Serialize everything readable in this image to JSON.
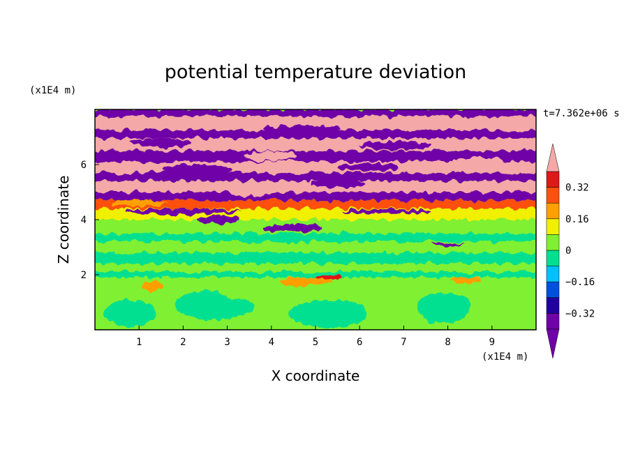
{
  "chart_data": {
    "type": "heatmap",
    "title": "potential temperature deviation",
    "xlabel": "X coordinate",
    "ylabel": "Z coordinate",
    "x_unit": "(x1E4 m)",
    "y_unit": "(x1E4 m)",
    "time_label": "t=7.362e+06 s",
    "xlim": [
      0,
      10
    ],
    "ylim": [
      0,
      8
    ],
    "x_ticks": [
      1,
      2,
      3,
      4,
      5,
      6,
      7,
      8,
      9
    ],
    "y_ticks": [
      2,
      4,
      6
    ],
    "colorbar": {
      "levels": [
        -0.4,
        -0.32,
        -0.24,
        -0.16,
        -0.08,
        0,
        0.08,
        0.16,
        0.24,
        0.32,
        0.4
      ],
      "tick_labels": [
        "0.32",
        "0.16",
        "0",
        "−0.16",
        "−0.32"
      ],
      "tick_values": [
        0.32,
        0.16,
        0,
        -0.16,
        -0.32
      ],
      "colors": [
        "#7000a8",
        "#2000a0",
        "#0050e0",
        "#00c0ff",
        "#00e090",
        "#80f030",
        "#f0f000",
        "#ffa000",
        "#ff5010",
        "#e01818",
        "#f4a8a8"
      ],
      "extend": "both"
    },
    "bands": [
      {
        "z0": 7.75,
        "z1": 8.0,
        "value": -0.45
      },
      {
        "z0": 7.25,
        "z1": 7.75,
        "value": 0.45
      },
      {
        "z0": 6.95,
        "z1": 7.25,
        "value": -0.45
      },
      {
        "z0": 6.5,
        "z1": 6.95,
        "value": 0.45
      },
      {
        "z0": 6.1,
        "z1": 6.5,
        "value": -0.45
      },
      {
        "z0": 5.7,
        "z1": 6.1,
        "value": 0.45
      },
      {
        "z0": 5.4,
        "z1": 5.7,
        "value": -0.45
      },
      {
        "z0": 5.0,
        "z1": 5.4,
        "value": 0.45
      },
      {
        "z0": 4.7,
        "z1": 5.0,
        "value": -0.45
      },
      {
        "z0": 4.4,
        "z1": 4.7,
        "value": 0.3
      },
      {
        "z0": 4.0,
        "z1": 4.4,
        "value": 0.12
      },
      {
        "z0": 3.5,
        "z1": 4.0,
        "value": 0.05
      },
      {
        "z0": 3.2,
        "z1": 3.5,
        "value": -0.04
      },
      {
        "z0": 2.8,
        "z1": 3.2,
        "value": 0.05
      },
      {
        "z0": 2.4,
        "z1": 2.8,
        "value": -0.04
      },
      {
        "z0": 2.1,
        "z1": 2.4,
        "value": 0.05
      },
      {
        "z0": 1.9,
        "z1": 2.1,
        "value": -0.04
      },
      {
        "z0": 0.0,
        "z1": 1.9,
        "value": 0.05
      }
    ],
    "patches": [
      {
        "x": 4.8,
        "z": 1.75,
        "rx": 0.6,
        "rz": 0.15,
        "value": 0.2
      },
      {
        "x": 5.3,
        "z": 1.9,
        "rx": 0.3,
        "rz": 0.08,
        "value": 0.33
      },
      {
        "x": 1.3,
        "z": 1.6,
        "rx": 0.25,
        "rz": 0.2,
        "value": 0.17
      },
      {
        "x": 8.4,
        "z": 1.8,
        "rx": 0.35,
        "rz": 0.12,
        "value": 0.18
      },
      {
        "x": 2.7,
        "z": 0.9,
        "rx": 0.9,
        "rz": 0.55,
        "value": -0.04
      },
      {
        "x": 5.3,
        "z": 0.6,
        "rx": 0.9,
        "rz": 0.5,
        "value": -0.04
      },
      {
        "x": 7.9,
        "z": 0.8,
        "rx": 0.6,
        "rz": 0.55,
        "value": -0.04
      },
      {
        "x": 0.8,
        "z": 0.6,
        "rx": 0.6,
        "rz": 0.45,
        "value": -0.04
      },
      {
        "x": 3.5,
        "z": 1.4,
        "rx": 0.7,
        "rz": 0.3,
        "value": 0.05
      },
      {
        "x": 8.0,
        "z": 3.1,
        "rx": 0.35,
        "rz": 0.06,
        "value": -0.33
      },
      {
        "x": 2.8,
        "z": 4.0,
        "rx": 0.5,
        "rz": 0.15,
        "value": -0.45
      },
      {
        "x": 4.5,
        "z": 3.7,
        "rx": 0.7,
        "rz": 0.14,
        "value": -0.45
      },
      {
        "x": 2.0,
        "z": 4.3,
        "rx": 1.3,
        "rz": 0.1,
        "value": -0.45
      },
      {
        "x": 6.6,
        "z": 4.3,
        "rx": 1.0,
        "rz": 0.08,
        "value": -0.33
      },
      {
        "x": 1.0,
        "z": 4.6,
        "rx": 0.6,
        "rz": 0.12,
        "value": 0.2
      },
      {
        "x": 3.5,
        "z": 5.0,
        "rx": 0.5,
        "rz": 0.15,
        "value": 0.45
      },
      {
        "x": 5.5,
        "z": 5.3,
        "rx": 0.6,
        "rz": 0.15,
        "value": -0.45
      },
      {
        "x": 7.5,
        "z": 5.2,
        "rx": 0.5,
        "rz": 0.15,
        "value": 0.45
      },
      {
        "x": 2.3,
        "z": 5.8,
        "rx": 0.8,
        "rz": 0.2,
        "value": -0.45
      },
      {
        "x": 6.2,
        "z": 5.9,
        "rx": 0.7,
        "rz": 0.15,
        "value": -0.45
      },
      {
        "x": 4.0,
        "z": 6.3,
        "rx": 0.6,
        "rz": 0.18,
        "value": 0.45
      },
      {
        "x": 8.7,
        "z": 6.1,
        "rx": 0.6,
        "rz": 0.15,
        "value": 0.45
      },
      {
        "x": 1.5,
        "z": 6.8,
        "rx": 0.7,
        "rz": 0.15,
        "value": -0.45
      },
      {
        "x": 6.8,
        "z": 6.7,
        "rx": 0.8,
        "rz": 0.15,
        "value": -0.45
      },
      {
        "x": 4.7,
        "z": 7.3,
        "rx": 0.9,
        "rz": 0.12,
        "value": -0.45
      },
      {
        "x": 0.7,
        "z": 7.4,
        "rx": 0.5,
        "rz": 0.15,
        "value": 0.45
      }
    ]
  }
}
